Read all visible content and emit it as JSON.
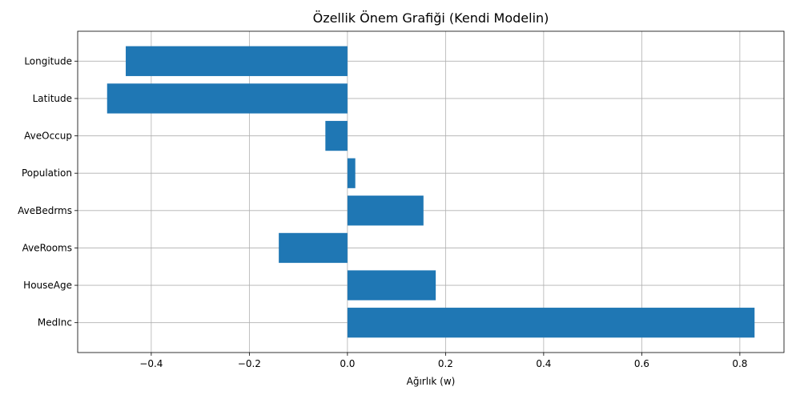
{
  "chart_data": {
    "type": "bar",
    "orientation": "horizontal",
    "title": "Özellik Önem Grafiği (Kendi Modelin)",
    "xlabel": "Ağırlık (w)",
    "ylabel": "",
    "categories": [
      "MedInc",
      "HouseAge",
      "AveRooms",
      "AveBedrms",
      "Population",
      "AveOccup",
      "Latitude",
      "Longitude"
    ],
    "values": [
      0.83,
      0.18,
      -0.14,
      0.155,
      0.016,
      -0.045,
      -0.49,
      -0.452
    ],
    "xlim": [
      -0.55,
      0.89
    ],
    "xticks": [
      -0.4,
      -0.2,
      0.0,
      0.2,
      0.4,
      0.6,
      0.8
    ],
    "xtick_labels": [
      "−0.4",
      "−0.2",
      "0.0",
      "0.2",
      "0.4",
      "0.6",
      "0.8"
    ],
    "grid": true,
    "bar_color": "#1f77b4"
  }
}
